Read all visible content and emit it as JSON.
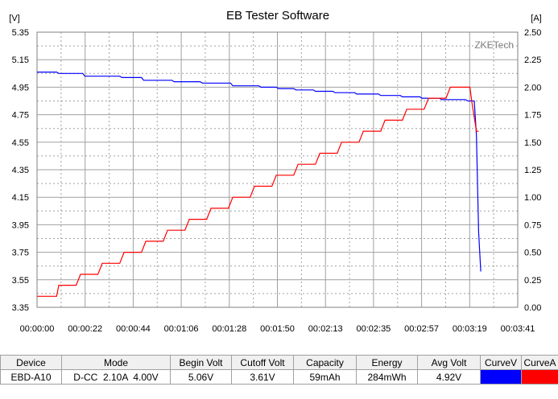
{
  "chart_data": {
    "type": "line",
    "title": "EB Tester Software",
    "watermark": "ZKETech",
    "y_left_unit": "[V]",
    "y_right_unit": "[A]",
    "ylim_left": [
      3.35,
      5.35
    ],
    "ylim_right": [
      0.0,
      2.5
    ],
    "y_left_ticks": [
      "5.35",
      "5.15",
      "4.95",
      "4.75",
      "4.55",
      "4.35",
      "4.15",
      "3.95",
      "3.75",
      "3.55",
      "3.35"
    ],
    "y_right_ticks": [
      "2.50",
      "2.25",
      "2.00",
      "1.75",
      "1.50",
      "1.25",
      "1.00",
      "0.75",
      "0.50",
      "0.25",
      "0.00"
    ],
    "x_ticks": [
      "00:00:00",
      "00:00:22",
      "00:00:44",
      "00:01:06",
      "00:01:28",
      "00:01:50",
      "00:02:13",
      "00:02:35",
      "00:02:57",
      "00:03:19",
      "00:03:41"
    ],
    "xlim": [
      0,
      221
    ],
    "grid": true,
    "series": [
      {
        "name": "CurveV",
        "color": "#0000ff",
        "axis": "left",
        "points": [
          [
            0,
            5.06
          ],
          [
            9,
            5.06
          ],
          [
            10,
            5.05
          ],
          [
            21,
            5.05
          ],
          [
            22,
            5.03
          ],
          [
            38,
            5.03
          ],
          [
            39,
            5.02
          ],
          [
            48,
            5.02
          ],
          [
            49,
            5.0
          ],
          [
            62,
            5.0
          ],
          [
            63,
            4.99
          ],
          [
            75,
            4.99
          ],
          [
            76,
            4.98
          ],
          [
            89,
            4.98
          ],
          [
            90,
            4.96
          ],
          [
            102,
            4.96
          ],
          [
            103,
            4.95
          ],
          [
            110,
            4.95
          ],
          [
            111,
            4.94
          ],
          [
            118,
            4.94
          ],
          [
            119,
            4.93
          ],
          [
            127,
            4.93
          ],
          [
            128,
            4.92
          ],
          [
            136,
            4.92
          ],
          [
            137,
            4.91
          ],
          [
            146,
            4.91
          ],
          [
            147,
            4.9
          ],
          [
            157,
            4.9
          ],
          [
            158,
            4.89
          ],
          [
            167,
            4.89
          ],
          [
            168,
            4.88
          ],
          [
            176,
            4.88
          ],
          [
            177,
            4.87
          ],
          [
            185,
            4.87
          ],
          [
            186,
            4.86
          ],
          [
            197,
            4.86
          ],
          [
            198,
            4.85
          ],
          [
            201,
            4.85
          ],
          [
            202,
            4.6
          ],
          [
            203,
            3.9
          ],
          [
            204,
            3.61
          ]
        ]
      },
      {
        "name": "CurveA",
        "color": "#ff0000",
        "axis": "right",
        "points": [
          [
            0,
            0.1
          ],
          [
            9,
            0.1
          ],
          [
            10,
            0.2
          ],
          [
            18,
            0.2
          ],
          [
            20,
            0.3
          ],
          [
            28,
            0.3
          ],
          [
            30,
            0.4
          ],
          [
            38,
            0.4
          ],
          [
            40,
            0.5
          ],
          [
            48,
            0.5
          ],
          [
            50,
            0.6
          ],
          [
            58,
            0.6
          ],
          [
            60,
            0.7
          ],
          [
            68,
            0.7
          ],
          [
            70,
            0.8
          ],
          [
            78,
            0.8
          ],
          [
            80,
            0.9
          ],
          [
            88,
            0.9
          ],
          [
            90,
            1.0
          ],
          [
            98,
            1.0
          ],
          [
            100,
            1.1
          ],
          [
            108,
            1.1
          ],
          [
            110,
            1.2
          ],
          [
            118,
            1.2
          ],
          [
            120,
            1.3
          ],
          [
            128,
            1.3
          ],
          [
            130,
            1.4
          ],
          [
            138,
            1.4
          ],
          [
            140,
            1.5
          ],
          [
            148,
            1.5
          ],
          [
            150,
            1.6
          ],
          [
            158,
            1.6
          ],
          [
            160,
            1.7
          ],
          [
            168,
            1.7
          ],
          [
            170,
            1.8
          ],
          [
            178,
            1.8
          ],
          [
            180,
            1.9
          ],
          [
            188,
            1.9
          ],
          [
            190,
            2.0
          ],
          [
            199,
            2.0
          ],
          [
            200,
            1.85
          ],
          [
            202,
            1.6
          ],
          [
            203,
            1.6
          ]
        ]
      }
    ]
  },
  "table": {
    "headers": [
      "Device",
      "Mode",
      "Begin Volt",
      "Cutoff Volt",
      "Capacity",
      "Energy",
      "Avg Volt",
      "CurveV",
      "CurveA"
    ],
    "row": [
      "EBD-A10",
      "D-CC  2.10A  4.00V",
      "5.06V",
      "3.61V",
      "59mAh",
      "284mWh",
      "4.92V",
      "",
      ""
    ],
    "curve_colors": [
      "#0000ff",
      "#ff0000"
    ]
  }
}
